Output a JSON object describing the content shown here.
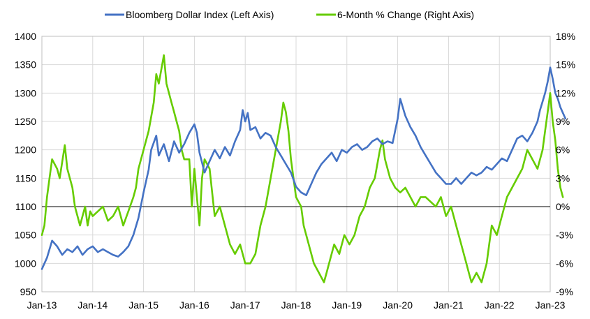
{
  "chart_data": {
    "type": "line",
    "legend_position": "top",
    "grid": true,
    "x_tick_labels": [
      "Jan-13",
      "Jan-14",
      "Jan-15",
      "Jan-16",
      "Jan-17",
      "Jan-18",
      "Jan-19",
      "Jan-20",
      "Jan-21",
      "Jan-22",
      "Jan-23"
    ],
    "x_range": [
      "Jan-13",
      "Jan-23"
    ],
    "left_axis": {
      "ylim": [
        950,
        1400
      ],
      "ticks": [
        "950",
        "1000",
        "1050",
        "1100",
        "1150",
        "1200",
        "1250",
        "1300",
        "1350",
        "1400"
      ]
    },
    "right_axis": {
      "ylim": [
        -9,
        18
      ],
      "ticks": [
        "-9%",
        "-6%",
        "-3%",
        "0%",
        "3%",
        "6%",
        "9%",
        "12%",
        "15%",
        "18%"
      ]
    },
    "series": [
      {
        "name": "Bloomberg Dollar Index (Left Axis)",
        "axis": "left",
        "color": "#4472C4",
        "points": [
          [
            0.0,
            990
          ],
          [
            0.1,
            1010
          ],
          [
            0.2,
            1040
          ],
          [
            0.3,
            1030
          ],
          [
            0.4,
            1015
          ],
          [
            0.5,
            1025
          ],
          [
            0.6,
            1020
          ],
          [
            0.7,
            1030
          ],
          [
            0.8,
            1015
          ],
          [
            0.9,
            1025
          ],
          [
            1.0,
            1030
          ],
          [
            1.1,
            1020
          ],
          [
            1.2,
            1025
          ],
          [
            1.3,
            1020
          ],
          [
            1.4,
            1015
          ],
          [
            1.5,
            1012
          ],
          [
            1.6,
            1020
          ],
          [
            1.7,
            1030
          ],
          [
            1.8,
            1050
          ],
          [
            1.9,
            1080
          ],
          [
            2.0,
            1125
          ],
          [
            2.1,
            1165
          ],
          [
            2.15,
            1200
          ],
          [
            2.25,
            1225
          ],
          [
            2.3,
            1190
          ],
          [
            2.4,
            1210
          ],
          [
            2.5,
            1180
          ],
          [
            2.6,
            1215
          ],
          [
            2.7,
            1195
          ],
          [
            2.8,
            1210
          ],
          [
            2.9,
            1230
          ],
          [
            3.0,
            1245
          ],
          [
            3.05,
            1230
          ],
          [
            3.1,
            1195
          ],
          [
            3.2,
            1160
          ],
          [
            3.3,
            1180
          ],
          [
            3.4,
            1200
          ],
          [
            3.5,
            1185
          ],
          [
            3.6,
            1205
          ],
          [
            3.7,
            1190
          ],
          [
            3.8,
            1215
          ],
          [
            3.9,
            1235
          ],
          [
            3.95,
            1270
          ],
          [
            4.0,
            1250
          ],
          [
            4.05,
            1265
          ],
          [
            4.1,
            1235
          ],
          [
            4.2,
            1240
          ],
          [
            4.3,
            1220
          ],
          [
            4.4,
            1230
          ],
          [
            4.5,
            1225
          ],
          [
            4.6,
            1205
          ],
          [
            4.7,
            1190
          ],
          [
            4.8,
            1175
          ],
          [
            4.9,
            1160
          ],
          [
            5.0,
            1135
          ],
          [
            5.1,
            1125
          ],
          [
            5.2,
            1120
          ],
          [
            5.3,
            1140
          ],
          [
            5.4,
            1160
          ],
          [
            5.5,
            1175
          ],
          [
            5.6,
            1185
          ],
          [
            5.7,
            1195
          ],
          [
            5.8,
            1180
          ],
          [
            5.9,
            1200
          ],
          [
            6.0,
            1195
          ],
          [
            6.1,
            1205
          ],
          [
            6.2,
            1210
          ],
          [
            6.3,
            1200
          ],
          [
            6.4,
            1205
          ],
          [
            6.5,
            1215
          ],
          [
            6.6,
            1220
          ],
          [
            6.7,
            1210
          ],
          [
            6.8,
            1215
          ],
          [
            6.9,
            1212
          ],
          [
            7.0,
            1255
          ],
          [
            7.05,
            1290
          ],
          [
            7.15,
            1260
          ],
          [
            7.25,
            1240
          ],
          [
            7.35,
            1225
          ],
          [
            7.45,
            1205
          ],
          [
            7.55,
            1190
          ],
          [
            7.65,
            1175
          ],
          [
            7.75,
            1160
          ],
          [
            7.85,
            1150
          ],
          [
            7.95,
            1140
          ],
          [
            8.05,
            1140
          ],
          [
            8.15,
            1150
          ],
          [
            8.25,
            1140
          ],
          [
            8.35,
            1150
          ],
          [
            8.45,
            1160
          ],
          [
            8.55,
            1155
          ],
          [
            8.65,
            1160
          ],
          [
            8.75,
            1170
          ],
          [
            8.85,
            1165
          ],
          [
            8.95,
            1175
          ],
          [
            9.05,
            1185
          ],
          [
            9.15,
            1180
          ],
          [
            9.25,
            1200
          ],
          [
            9.35,
            1220
          ],
          [
            9.45,
            1225
          ],
          [
            9.55,
            1215
          ],
          [
            9.65,
            1230
          ],
          [
            9.75,
            1250
          ],
          [
            9.8,
            1270
          ],
          [
            9.85,
            1285
          ],
          [
            9.9,
            1300
          ],
          [
            9.95,
            1320
          ],
          [
            10.0,
            1345
          ],
          [
            10.05,
            1325
          ],
          [
            10.1,
            1300
          ],
          [
            10.15,
            1290
          ],
          [
            10.2,
            1275
          ],
          [
            10.25,
            1265
          ],
          [
            10.3,
            1255
          ]
        ]
      },
      {
        "name": "6-Month % Change (Right Axis)",
        "axis": "right",
        "color": "#66CC00",
        "points": [
          [
            0.0,
            -3
          ],
          [
            0.05,
            -2
          ],
          [
            0.1,
            1
          ],
          [
            0.15,
            3
          ],
          [
            0.2,
            5
          ],
          [
            0.3,
            4
          ],
          [
            0.35,
            3
          ],
          [
            0.45,
            6.5
          ],
          [
            0.5,
            4
          ],
          [
            0.6,
            2
          ],
          [
            0.65,
            0
          ],
          [
            0.7,
            -1
          ],
          [
            0.75,
            -2
          ],
          [
            0.8,
            -1
          ],
          [
            0.85,
            0
          ],
          [
            0.9,
            -2
          ],
          [
            0.95,
            -0.5
          ],
          [
            1.0,
            -1
          ],
          [
            1.1,
            -0.5
          ],
          [
            1.2,
            0
          ],
          [
            1.3,
            -1.5
          ],
          [
            1.4,
            -1
          ],
          [
            1.5,
            0
          ],
          [
            1.6,
            -2
          ],
          [
            1.7,
            -0.5
          ],
          [
            1.8,
            1
          ],
          [
            1.85,
            2
          ],
          [
            1.9,
            4
          ],
          [
            2.0,
            6
          ],
          [
            2.1,
            8
          ],
          [
            2.2,
            11
          ],
          [
            2.25,
            14
          ],
          [
            2.3,
            13
          ],
          [
            2.4,
            16
          ],
          [
            2.45,
            13
          ],
          [
            2.5,
            12
          ],
          [
            2.55,
            11
          ],
          [
            2.6,
            10
          ],
          [
            2.65,
            9
          ],
          [
            2.7,
            8
          ],
          [
            2.75,
            6
          ],
          [
            2.8,
            5
          ],
          [
            2.9,
            5
          ],
          [
            2.95,
            0
          ],
          [
            3.0,
            4
          ],
          [
            3.05,
            1
          ],
          [
            3.1,
            -2
          ],
          [
            3.15,
            3
          ],
          [
            3.2,
            5
          ],
          [
            3.3,
            4
          ],
          [
            3.4,
            -1
          ],
          [
            3.5,
            0
          ],
          [
            3.6,
            -2
          ],
          [
            3.7,
            -4
          ],
          [
            3.8,
            -5
          ],
          [
            3.9,
            -4
          ],
          [
            4.0,
            -6
          ],
          [
            4.1,
            -6
          ],
          [
            4.2,
            -5
          ],
          [
            4.3,
            -2
          ],
          [
            4.4,
            0
          ],
          [
            4.5,
            3
          ],
          [
            4.6,
            6
          ],
          [
            4.7,
            9
          ],
          [
            4.75,
            11
          ],
          [
            4.8,
            10
          ],
          [
            4.85,
            8
          ],
          [
            4.9,
            5
          ],
          [
            5.0,
            1
          ],
          [
            5.1,
            0
          ],
          [
            5.15,
            -2
          ],
          [
            5.25,
            -4
          ],
          [
            5.35,
            -6
          ],
          [
            5.45,
            -7
          ],
          [
            5.55,
            -8
          ],
          [
            5.6,
            -7
          ],
          [
            5.65,
            -6
          ],
          [
            5.75,
            -4
          ],
          [
            5.85,
            -5
          ],
          [
            5.95,
            -3
          ],
          [
            6.05,
            -4
          ],
          [
            6.15,
            -3
          ],
          [
            6.25,
            -1
          ],
          [
            6.35,
            0
          ],
          [
            6.45,
            2
          ],
          [
            6.55,
            3
          ],
          [
            6.65,
            6
          ],
          [
            6.7,
            7
          ],
          [
            6.75,
            5
          ],
          [
            6.85,
            3
          ],
          [
            6.95,
            2
          ],
          [
            7.05,
            1.5
          ],
          [
            7.15,
            2
          ],
          [
            7.25,
            1
          ],
          [
            7.35,
            0
          ],
          [
            7.45,
            1
          ],
          [
            7.55,
            1
          ],
          [
            7.65,
            0.5
          ],
          [
            7.75,
            0
          ],
          [
            7.85,
            1
          ],
          [
            7.95,
            -1
          ],
          [
            8.05,
            0
          ],
          [
            8.15,
            -2
          ],
          [
            8.25,
            -4
          ],
          [
            8.35,
            -6
          ],
          [
            8.4,
            -7
          ],
          [
            8.45,
            -8
          ],
          [
            8.55,
            -7
          ],
          [
            8.65,
            -8
          ],
          [
            8.75,
            -6
          ],
          [
            8.8,
            -4
          ],
          [
            8.85,
            -2
          ],
          [
            8.95,
            -3
          ],
          [
            9.05,
            -1
          ],
          [
            9.15,
            1
          ],
          [
            9.25,
            2
          ],
          [
            9.35,
            3
          ],
          [
            9.45,
            4
          ],
          [
            9.55,
            6
          ],
          [
            9.65,
            5
          ],
          [
            9.75,
            4
          ],
          [
            9.85,
            6
          ],
          [
            9.9,
            8
          ],
          [
            9.95,
            10
          ],
          [
            10.0,
            12
          ],
          [
            10.05,
            9
          ],
          [
            10.1,
            7
          ],
          [
            10.15,
            4
          ],
          [
            10.2,
            2
          ],
          [
            10.25,
            1
          ]
        ]
      }
    ]
  }
}
